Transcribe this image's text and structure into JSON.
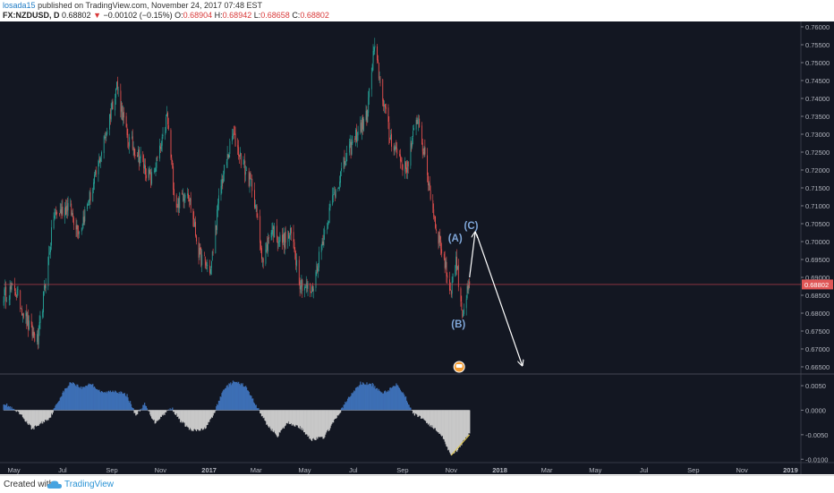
{
  "header": {
    "user": "losada15",
    "published_text": "published on TradingView.com, November 24, 2017 07:48 EST",
    "symbol": "FX:NZDUSD, D",
    "last": "0.68802",
    "change": "−0.00102 (−0.15%)",
    "open_label": "O:",
    "open": "0.68904",
    "high_label": "H:",
    "high": "0.68942",
    "low_label": "L:",
    "low": "0.68658",
    "close_label": "C:",
    "close": "0.68802"
  },
  "footer": {
    "created_text": "Created with",
    "brand_text": "TradingView"
  },
  "icons": {
    "down_arrow": "triangle-down-icon",
    "logo": "tradingview-cloud-icon",
    "event": "news-flag-icon"
  },
  "colors": {
    "background": "#131722",
    "up": "#26a69a",
    "down": "#ef5350",
    "price_line": "#d04550",
    "annotation": "#7fa6d8",
    "arrow": "#ffffff",
    "osc_positive": "#3d6fb5",
    "osc_negative": "#c8c8c8",
    "divergence_line": "#e3c94a"
  },
  "chart_data": [
    {
      "type": "candlestick",
      "symbol": "FX:NZDUSD",
      "timeframe": "D",
      "x_axis": {
        "tick_labels": [
          "May",
          "Jul",
          "Sep",
          "Nov",
          "2017",
          "Mar",
          "May",
          "Jul",
          "Sep",
          "Nov",
          "2018",
          "Mar",
          "May",
          "Jul",
          "Sep",
          "Nov",
          "2019"
        ]
      },
      "y_axis": {
        "tick_labels": [
          "0.76000",
          "0.75500",
          "0.75000",
          "0.74500",
          "0.74000",
          "0.73500",
          "0.73000",
          "0.72500",
          "0.72000",
          "0.71500",
          "0.71000",
          "0.70500",
          "0.70000",
          "0.69500",
          "0.69000",
          "0.68500",
          "0.68000",
          "0.67500",
          "0.67000",
          "0.66500"
        ],
        "range": [
          0.663,
          0.7615
        ]
      },
      "last_price": 0.68802,
      "last_price_label": "0.68802",
      "price_path": [
        [
          "2016-04-18",
          0.685
        ],
        [
          "2016-05-02",
          0.687
        ],
        [
          "2016-05-20",
          0.676
        ],
        [
          "2016-05-31",
          0.672
        ],
        [
          "2016-06-20",
          0.707
        ],
        [
          "2016-07-08",
          0.71
        ],
        [
          "2016-07-22",
          0.703
        ],
        [
          "2016-08-08",
          0.715
        ],
        [
          "2016-08-24",
          0.73
        ],
        [
          "2016-09-07",
          0.744
        ],
        [
          "2016-09-20",
          0.729
        ],
        [
          "2016-10-05",
          0.724
        ],
        [
          "2016-10-20",
          0.717
        ],
        [
          "2016-11-04",
          0.728
        ],
        [
          "2016-11-09",
          0.735
        ],
        [
          "2016-11-20",
          0.71
        ],
        [
          "2016-12-05",
          0.715
        ],
        [
          "2016-12-20",
          0.696
        ],
        [
          "2017-01-03",
          0.692
        ],
        [
          "2017-01-15",
          0.715
        ],
        [
          "2017-01-31",
          0.73
        ],
        [
          "2017-02-15",
          0.72
        ],
        [
          "2017-02-25",
          0.715
        ],
        [
          "2017-03-10",
          0.694
        ],
        [
          "2017-03-20",
          0.704
        ],
        [
          "2017-04-01",
          0.7
        ],
        [
          "2017-04-15",
          0.702
        ],
        [
          "2017-04-25",
          0.689
        ],
        [
          "2017-05-10",
          0.686
        ],
        [
          "2017-05-25",
          0.702
        ],
        [
          "2017-06-05",
          0.712
        ],
        [
          "2017-06-20",
          0.722
        ],
        [
          "2017-07-05",
          0.73
        ],
        [
          "2017-07-18",
          0.735
        ],
        [
          "2017-07-27",
          0.754
        ],
        [
          "2017-08-03",
          0.746
        ],
        [
          "2017-08-15",
          0.73
        ],
        [
          "2017-08-25",
          0.725
        ],
        [
          "2017-09-05",
          0.72
        ],
        [
          "2017-09-20",
          0.735
        ],
        [
          "2017-10-01",
          0.72
        ],
        [
          "2017-10-12",
          0.705
        ],
        [
          "2017-10-20",
          0.698
        ],
        [
          "2017-10-31",
          0.686
        ],
        [
          "2017-11-07",
          0.695
        ],
        [
          "2017-11-15",
          0.68
        ],
        [
          "2017-11-24",
          0.688
        ]
      ],
      "annotations": [
        {
          "label": "(A)",
          "date": "2017-11-06",
          "price": 0.7
        },
        {
          "label": "(B)",
          "date": "2017-11-10",
          "price": 0.676
        },
        {
          "label": "(C)",
          "date": "2017-11-26",
          "price": 0.7035
        }
      ],
      "projection_arrows": [
        {
          "from": [
            "2017-11-24",
            0.69
          ],
          "to": [
            "2017-12-01",
            0.7025
          ]
        },
        {
          "from": [
            "2017-12-03",
            0.702
          ],
          "to": [
            "2018-01-29",
            0.6655
          ]
        }
      ]
    },
    {
      "type": "area",
      "name": "oscillator",
      "y_axis": {
        "tick_labels": [
          "0.0050",
          "0.0000",
          "-0.0050",
          "-0.0100"
        ],
        "range": [
          -0.0105,
          0.0072
        ]
      },
      "x": [
        "2016-04-18",
        "2016-05-10",
        "2016-05-24",
        "2016-06-15",
        "2016-07-01",
        "2016-07-12",
        "2016-07-25",
        "2016-08-05",
        "2016-08-20",
        "2016-09-05",
        "2016-09-20",
        "2016-10-01",
        "2016-10-12",
        "2016-10-25",
        "2016-11-07",
        "2016-11-15",
        "2016-11-25",
        "2016-12-10",
        "2016-12-25",
        "2017-01-05",
        "2017-01-20",
        "2017-02-01",
        "2017-02-15",
        "2017-03-01",
        "2017-03-15",
        "2017-03-28",
        "2017-04-10",
        "2017-04-25",
        "2017-05-10",
        "2017-05-25",
        "2017-06-10",
        "2017-06-25",
        "2017-07-10",
        "2017-07-25",
        "2017-08-05",
        "2017-08-15",
        "2017-08-25",
        "2017-09-05",
        "2017-09-15",
        "2017-09-25",
        "2017-10-05",
        "2017-10-20",
        "2017-10-31",
        "2017-11-10",
        "2017-11-24"
      ],
      "values": [
        0.0015,
        -0.001,
        -0.0038,
        -0.0015,
        0.0035,
        0.0058,
        0.0045,
        0.0055,
        0.0035,
        0.004,
        0.003,
        -0.001,
        0.0012,
        -0.0025,
        -0.0005,
        0.0005,
        -0.002,
        -0.0042,
        -0.004,
        -0.0015,
        0.0045,
        0.0058,
        0.005,
        0.001,
        -0.003,
        -0.0052,
        -0.0025,
        -0.0035,
        -0.006,
        -0.0055,
        -0.0015,
        0.0025,
        0.0055,
        0.0052,
        0.0035,
        0.0042,
        0.0055,
        0.0025,
        -0.0008,
        -0.0015,
        -0.003,
        -0.005,
        -0.009,
        -0.008,
        -0.0045
      ],
      "divergence_line": {
        "from": [
          "2017-11-01",
          -0.0092
        ],
        "to": [
          "2017-11-24",
          -0.005
        ]
      }
    }
  ]
}
